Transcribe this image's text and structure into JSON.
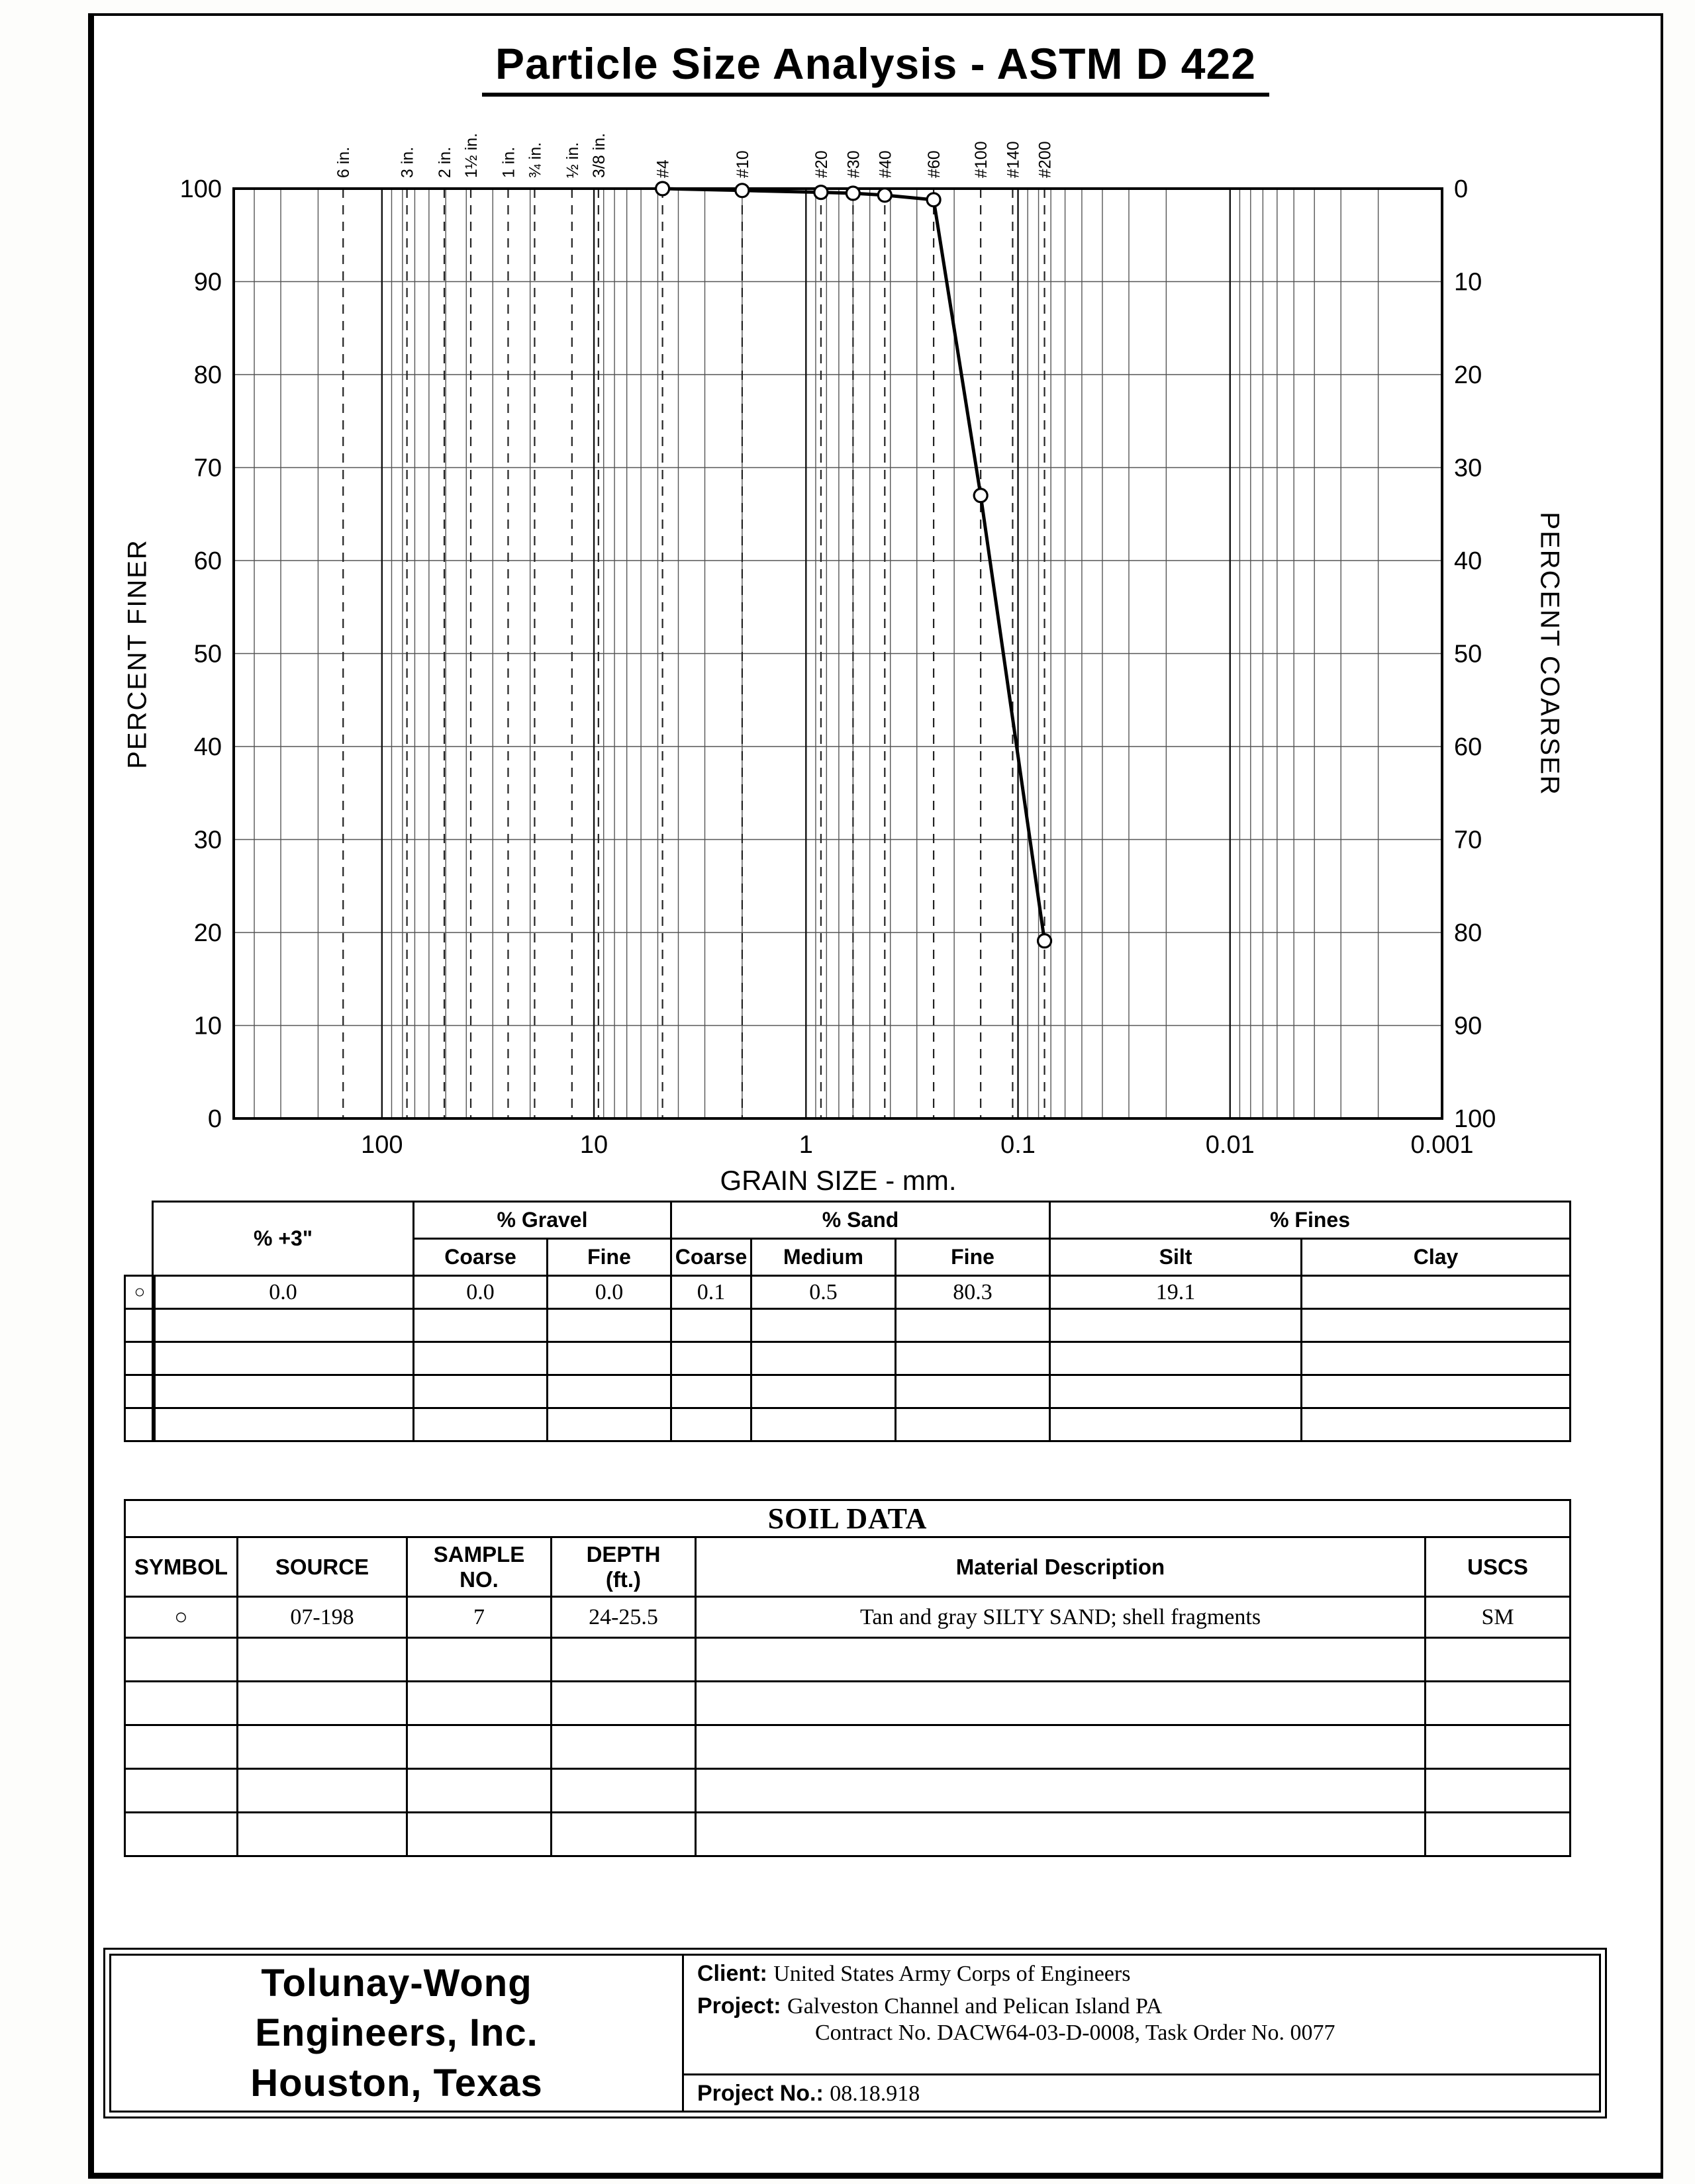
{
  "page_title": "Particle Size Analysis - ASTM D 422",
  "chart_data": {
    "type": "line",
    "title": "Particle Size Analysis - ASTM D 422",
    "x_label": "GRAIN SIZE - mm.",
    "y_left_label": "PERCENT FINER",
    "y_right_label": "PERCENT COARSER",
    "x_scale": "log",
    "x_range_mm": [
      500,
      0.001
    ],
    "y_range": [
      0,
      100
    ],
    "grid": true,
    "x_decade_values": [
      100,
      10,
      1,
      0.1,
      0.01,
      0.001
    ],
    "x_decade_labels": [
      "100",
      "10",
      "1",
      "0.1",
      "0.01",
      "0.001"
    ],
    "y_ticks_left": [
      100,
      90,
      80,
      70,
      60,
      50,
      40,
      30,
      20,
      10,
      0
    ],
    "y_ticks_right": [
      0,
      10,
      20,
      30,
      40,
      50,
      60,
      70,
      80,
      90,
      100
    ],
    "sieves": [
      {
        "label": "6 in.",
        "mm": 152.4
      },
      {
        "label": "3 in.",
        "mm": 76.2
      },
      {
        "label": "2 in.",
        "mm": 50.8
      },
      {
        "label": "1½ in.",
        "mm": 38.1
      },
      {
        "label": "1 in.",
        "mm": 25.4
      },
      {
        "label": "¾ in.",
        "mm": 19.05
      },
      {
        "label": "½ in.",
        "mm": 12.7
      },
      {
        "label": "3/8 in.",
        "mm": 9.525
      },
      {
        "label": "#4",
        "mm": 4.75
      },
      {
        "label": "#10",
        "mm": 2.0
      },
      {
        "label": "#20",
        "mm": 0.85
      },
      {
        "label": "#30",
        "mm": 0.6
      },
      {
        "label": "#40",
        "mm": 0.425
      },
      {
        "label": "#60",
        "mm": 0.25
      },
      {
        "label": "#100",
        "mm": 0.15
      },
      {
        "label": "#140",
        "mm": 0.106
      },
      {
        "label": "#200",
        "mm": 0.075
      }
    ],
    "series": [
      {
        "marker": "circle",
        "points": [
          {
            "mm": 4.75,
            "percent_finer": 100.0
          },
          {
            "mm": 2.0,
            "percent_finer": 99.8
          },
          {
            "mm": 0.85,
            "percent_finer": 99.6
          },
          {
            "mm": 0.6,
            "percent_finer": 99.5
          },
          {
            "mm": 0.425,
            "percent_finer": 99.3
          },
          {
            "mm": 0.25,
            "percent_finer": 98.8
          },
          {
            "mm": 0.15,
            "percent_finer": 67.0
          },
          {
            "mm": 0.075,
            "percent_finer": 19.1
          }
        ]
      }
    ]
  },
  "gradation_table": {
    "plus3_header": "% +3\"",
    "gravel_header": "% Gravel",
    "sand_header": "% Sand",
    "fines_header": "% Fines",
    "sub_headers": [
      "Coarse",
      "Fine",
      "Coarse",
      "Medium",
      "Fine",
      "Silt",
      "Clay"
    ],
    "row1": {
      "symbol": "○",
      "plus3": "0.0",
      "gravel_coarse": "0.0",
      "gravel_fine": "0.0",
      "sand_coarse": "0.1",
      "sand_medium": "0.5",
      "sand_fine": "80.3",
      "silt": "19.1",
      "clay": ""
    }
  },
  "soil_data_table": {
    "title": "SOIL DATA",
    "headers": {
      "symbol": "SYMBOL",
      "source": "SOURCE",
      "sample_line1": "SAMPLE",
      "sample_line2": "NO.",
      "depth_line1": "DEPTH",
      "depth_line2": "(ft.)",
      "description": "Material Description",
      "uscs": "USCS"
    },
    "row1": {
      "symbol": "○",
      "source": "07-198",
      "sample_no": "7",
      "depth": "24-25.5",
      "description": "Tan and gray SILTY SAND; shell fragments",
      "uscs": "SM"
    }
  },
  "footer": {
    "company_lines": [
      "Tolunay-Wong",
      "Engineers, Inc.",
      "Houston, Texas"
    ],
    "client_label": "Client:",
    "client": "United States Army Corps of Engineers",
    "project_label": "Project:",
    "project_line1": "Galveston Channel and Pelican Island PA",
    "project_line2": "Contract No. DACW64-03-D-0008, Task Order No. 0077",
    "project_no_label": "Project No.:",
    "project_no": "08.18.918"
  }
}
